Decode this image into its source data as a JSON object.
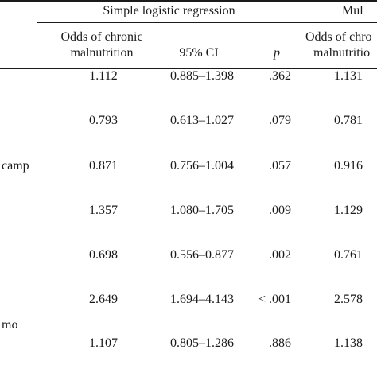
{
  "header": {
    "group1": "Simple logistic regression",
    "group2": "Mul",
    "col_odds_line1": "Odds of chronic",
    "col_odds_line2": "malnutrition",
    "col_ci": "95% CI",
    "col_p": "p",
    "col2_odds_line1": "Odds of chro",
    "col2_odds_line2": "malnutritio"
  },
  "rows": [
    {
      "label": "",
      "odds": "1.112",
      "ci": "0.885–1.398",
      "p": ".362",
      "odds2": "1.131"
    },
    {
      "label": "",
      "odds": "0.793",
      "ci": "0.613–1.027",
      "p": ".079",
      "odds2": "0.781"
    },
    {
      "label": "camp",
      "odds": "0.871",
      "ci": "0.756–1.004",
      "p": ".057",
      "odds2": "0.916"
    },
    {
      "label": "",
      "odds": "1.357",
      "ci": "1.080–1.705",
      "p": ".009",
      "odds2": "1.129"
    },
    {
      "label": "",
      "odds": "0.698",
      "ci": "0.556–0.877",
      "p": ".002",
      "odds2": "0.761"
    },
    {
      "label": "",
      "odds": "2.649",
      "ci": "1.694–4.143",
      "p": "< .001",
      "odds2": "2.578"
    },
    {
      "label": "mo",
      "odds": "1.107",
      "ci": "0.805–1.286",
      "p": ".886",
      "odds2": "1.138"
    }
  ]
}
